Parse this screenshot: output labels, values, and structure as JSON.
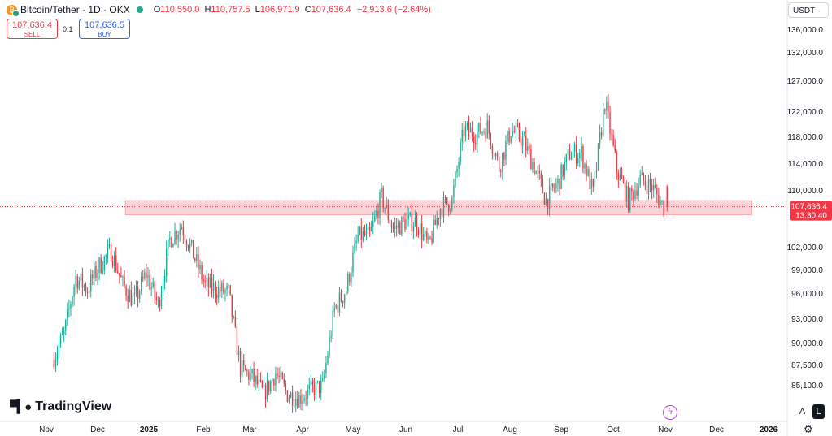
{
  "header": {
    "symbol_text": "Bitcoin/Tether · 1D · OKX",
    "ohlc": [
      {
        "key": "O",
        "value": "110,550.0"
      },
      {
        "key": "H",
        "value": "110,757.5"
      },
      {
        "key": "L",
        "value": "106,971.9"
      },
      {
        "key": "C",
        "value": "107,636.4"
      }
    ],
    "change": "−2,913.6 (−2.64%)",
    "coin_icon": "bitcoin-tether-icon"
  },
  "trade": {
    "sell_price": "107,636.4",
    "sell_label": "SELL",
    "spread": "0.1",
    "buy_price": "107,636.5",
    "buy_label": "BUY"
  },
  "currency": "USDT",
  "brand": "TradingView",
  "bottom_buttons": {
    "a": "A",
    "l": "L"
  },
  "icons": {
    "flash": "flash-icon",
    "settings": "gear-icon"
  },
  "colors": {
    "up": "#22ab94",
    "down": "#f23645",
    "zone": "#f23645",
    "text": "#131722"
  },
  "chart_data": {
    "type": "candlestick",
    "interval": "1D",
    "title": "Bitcoin/Tether · 1D · OKX",
    "xlabel": "",
    "ylabel": "",
    "ylim": [
      83000,
      138000
    ],
    "x_tick_labels": [
      "Nov",
      "Dec",
      "2025",
      "Feb",
      "Mar",
      "Apr",
      "May",
      "Jun",
      "Jul",
      "Aug",
      "Sep",
      "Oct",
      "Nov",
      "Dec",
      "2026"
    ],
    "y_tick_labels": [
      "136,000.0",
      "132,000.0",
      "127,000.0",
      "122,000.0",
      "118,000.0",
      "114,000.0",
      "110,000.0",
      "102,000.0",
      "99,000.0",
      "96,000.0",
      "93,000.0",
      "90,000.0",
      "87,500.0",
      "85,100.0"
    ],
    "y_tick_values": [
      136000,
      132000,
      127000,
      122000,
      118000,
      114000,
      110000,
      102000,
      99000,
      96000,
      93000,
      90000,
      87500,
      85100
    ],
    "last_price": "107,636.4",
    "countdown": "13:30:40",
    "last_price_value": 107636.4,
    "zone": {
      "from": 106500,
      "to": 108500,
      "start": "2024-12-17",
      "end": "2025-12-25"
    },
    "closes_weekly": [
      {
        "week": "2024-11-04",
        "close": 88000
      },
      {
        "week": "2024-11-11",
        "close": 91000
      },
      {
        "week": "2024-11-18",
        "close": 98000
      },
      {
        "week": "2024-11-25",
        "close": 96500
      },
      {
        "week": "2024-12-02",
        "close": 99500
      },
      {
        "week": "2024-12-09",
        "close": 101500
      },
      {
        "week": "2024-12-16",
        "close": 97000
      },
      {
        "week": "2024-12-23",
        "close": 95000
      },
      {
        "week": "2024-12-30",
        "close": 98500
      },
      {
        "week": "2025-01-06",
        "close": 94500
      },
      {
        "week": "2025-01-13",
        "close": 103000
      },
      {
        "week": "2025-01-20",
        "close": 105000
      },
      {
        "week": "2025-01-27",
        "close": 101000
      },
      {
        "week": "2025-02-03",
        "close": 97000
      },
      {
        "week": "2025-02-10",
        "close": 96500
      },
      {
        "week": "2025-02-17",
        "close": 96000
      },
      {
        "week": "2025-02-24",
        "close": 87000
      },
      {
        "week": "2025-03-03",
        "close": 86000
      },
      {
        "week": "2025-03-10",
        "close": 84000
      },
      {
        "week": "2025-03-17",
        "close": 86500
      },
      {
        "week": "2025-03-24",
        "close": 84000
      },
      {
        "week": "2025-03-31",
        "close": 83500
      },
      {
        "week": "2025-04-07",
        "close": 84500
      },
      {
        "week": "2025-04-14",
        "close": 85000
      },
      {
        "week": "2025-04-21",
        "close": 94000
      },
      {
        "week": "2025-04-28",
        "close": 96500
      },
      {
        "week": "2025-05-05",
        "close": 103500
      },
      {
        "week": "2025-05-12",
        "close": 103500
      },
      {
        "week": "2025-05-19",
        "close": 109000
      },
      {
        "week": "2025-05-26",
        "close": 104500
      },
      {
        "week": "2025-06-02",
        "close": 105500
      },
      {
        "week": "2025-06-09",
        "close": 105500
      },
      {
        "week": "2025-06-16",
        "close": 102000
      },
      {
        "week": "2025-06-23",
        "close": 107500
      },
      {
        "week": "2025-06-30",
        "close": 108500
      },
      {
        "week": "2025-07-07",
        "close": 119000
      },
      {
        "week": "2025-07-14",
        "close": 118500
      },
      {
        "week": "2025-07-21",
        "close": 119500
      },
      {
        "week": "2025-07-28",
        "close": 113500
      },
      {
        "week": "2025-08-04",
        "close": 119000
      },
      {
        "week": "2025-08-11",
        "close": 117500
      },
      {
        "week": "2025-08-18",
        "close": 113500
      },
      {
        "week": "2025-08-25",
        "close": 108500
      },
      {
        "week": "2025-09-01",
        "close": 111000
      },
      {
        "week": "2025-09-08",
        "close": 115500
      },
      {
        "week": "2025-09-15",
        "close": 115500
      },
      {
        "week": "2025-09-22",
        "close": 109500
      },
      {
        "week": "2025-09-29",
        "close": 123500
      },
      {
        "week": "2025-10-06",
        "close": 113000
      },
      {
        "week": "2025-10-13",
        "close": 108500
      },
      {
        "week": "2025-10-20",
        "close": 111500
      },
      {
        "week": "2025-10-27",
        "close": 110500
      },
      {
        "week": "2025-11-03",
        "close": 107636.4
      }
    ]
  }
}
